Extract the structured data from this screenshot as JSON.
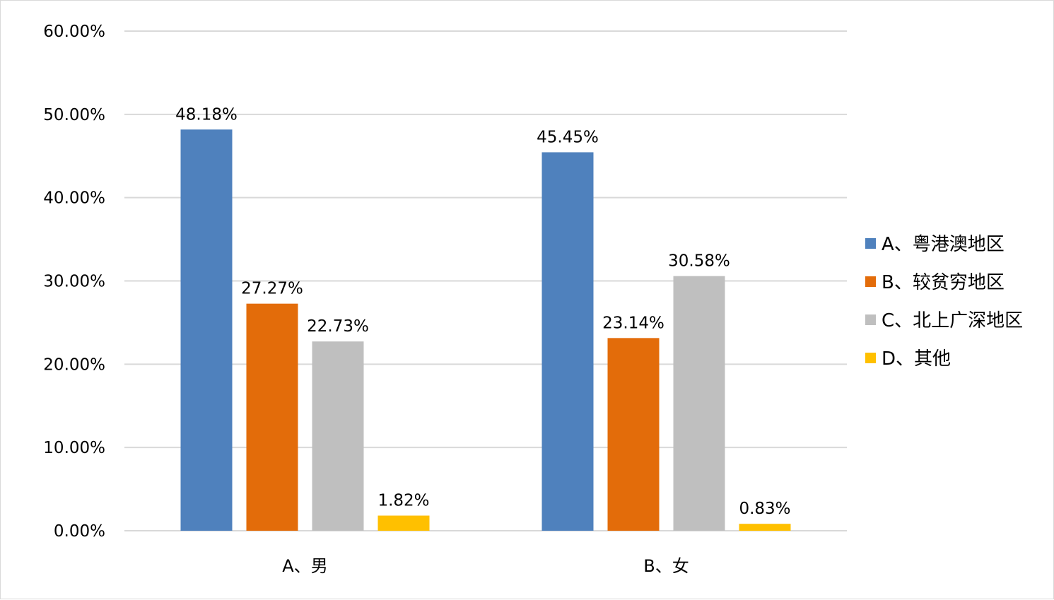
{
  "chart_data": {
    "type": "bar",
    "title": "",
    "xlabel": "",
    "ylabel": "",
    "categories": [
      "A、男",
      "B、女"
    ],
    "series": [
      {
        "name": "A、粤港澳地区",
        "values": [
          48.18,
          45.45
        ],
        "labels": [
          "48.18%",
          "45.45%"
        ]
      },
      {
        "name": "B、较贫穷地区",
        "values": [
          27.27,
          23.14
        ],
        "labels": [
          "27.27%",
          "23.14%"
        ]
      },
      {
        "name": "C、北上广深地区",
        "values": [
          22.73,
          30.58
        ],
        "labels": [
          "22.73%",
          "30.58%"
        ]
      },
      {
        "name": "D、其他",
        "values": [
          1.82,
          0.83
        ],
        "labels": [
          "1.82%",
          "0.83%"
        ]
      }
    ],
    "colors": [
      "#4f81bd",
      "#e36c0a",
      "#bfbfbf",
      "#ffc000"
    ],
    "ylim": [
      0,
      60
    ],
    "yticks": [
      "0.00%",
      "10.00%",
      "20.00%",
      "30.00%",
      "40.00%",
      "50.00%",
      "60.00%"
    ],
    "grid": true,
    "legend_position": "right"
  }
}
